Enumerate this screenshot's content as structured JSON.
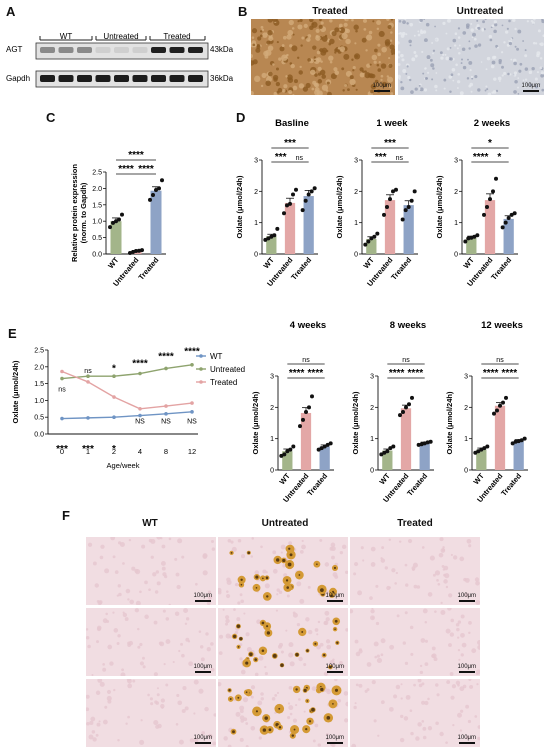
{
  "panels": {
    "A": "A",
    "B": "B",
    "C": "C",
    "D": "D",
    "E": "E",
    "F": "F"
  },
  "western": {
    "groups": [
      "WT",
      "Untreated",
      "Treated"
    ],
    "rows": [
      {
        "protein": "AGT",
        "size": "43kDa"
      },
      {
        "protein": "Gapdh",
        "size": "36kDa"
      }
    ]
  },
  "ihc": {
    "titles": [
      "Treated",
      "Untreated"
    ],
    "scale": "100μm",
    "colors": {
      "treated": "#a9793f",
      "untreated": "#cfd2da"
    }
  },
  "colors": {
    "wt": "#a3b58a",
    "untreated": "#e3a7a6",
    "treated": "#8ea3c6",
    "wt_line": "#6f94c4",
    "untreated_line": "#8ea36e",
    "treated_line": "#e3a3a3"
  },
  "chart_data": [
    {
      "id": "C",
      "type": "bar",
      "title": "",
      "ylabel": "Relative protein expression\n(norm. to Gapdh)",
      "ylabel_lines": [
        "Relative protein expression",
        "(norm. to Gapdh)"
      ],
      "categories": [
        "WT",
        "Untreated",
        "Treated"
      ],
      "values": [
        1.0,
        0.08,
        1.93
      ],
      "errors": [
        0.1,
        0.03,
        0.12
      ],
      "points": [
        [
          0.82,
          0.95,
          1.0,
          1.05,
          1.2
        ],
        [
          0.03,
          0.06,
          0.09,
          0.1,
          0.12
        ],
        [
          1.65,
          1.8,
          1.95,
          2.0,
          2.25
        ]
      ],
      "ylim": [
        0,
        2.5
      ],
      "yticks": [
        "0.0",
        "0.5",
        "1.0",
        "1.5",
        "2.0",
        "2.5"
      ],
      "significance": [
        {
          "from": 0,
          "to": 2,
          "label": "****"
        },
        {
          "from": 0,
          "to": 1,
          "label": "****"
        },
        {
          "from": 1,
          "to": 2,
          "label": "****"
        }
      ]
    },
    {
      "id": "D1",
      "type": "bar",
      "title": "Basline",
      "ylabel": "Oxlate (μmol/24h)",
      "categories": [
        "WT",
        "Untreated",
        "Treated"
      ],
      "values": [
        0.57,
        1.63,
        1.85
      ],
      "errors": [
        0.06,
        0.15,
        0.18
      ],
      "points": [
        [
          0.45,
          0.5,
          0.55,
          0.6,
          0.8
        ],
        [
          1.3,
          1.55,
          1.6,
          1.9,
          2.05
        ],
        [
          1.4,
          1.7,
          1.9,
          2.0,
          2.1
        ]
      ],
      "ylim": [
        0,
        3
      ],
      "yticks": [
        "0",
        "1",
        "2",
        "3"
      ],
      "significance": [
        {
          "from": 0,
          "to": 2,
          "label": "***"
        },
        {
          "from": 0,
          "to": 1,
          "label": "***"
        },
        {
          "from": 1,
          "to": 2,
          "label": "ns"
        }
      ]
    },
    {
      "id": "D2",
      "type": "bar",
      "title": "1 week",
      "ylabel": "Oxlate (μmol/24h)",
      "categories": [
        "WT",
        "Untreated",
        "Treated"
      ],
      "values": [
        0.48,
        1.72,
        1.56
      ],
      "errors": [
        0.07,
        0.17,
        0.14
      ],
      "points": [
        [
          0.3,
          0.4,
          0.5,
          0.55,
          0.65
        ],
        [
          1.25,
          1.5,
          1.75,
          2.0,
          2.05
        ],
        [
          1.1,
          1.4,
          1.5,
          1.7,
          2.0
        ]
      ],
      "ylim": [
        0,
        3
      ],
      "yticks": [
        "0",
        "1",
        "2",
        "3"
      ],
      "significance": [
        {
          "from": 0,
          "to": 2,
          "label": "***"
        },
        {
          "from": 0,
          "to": 1,
          "label": "***"
        },
        {
          "from": 1,
          "to": 2,
          "label": "ns"
        }
      ]
    },
    {
      "id": "D3",
      "type": "bar",
      "title": "2 weeks",
      "ylabel": "Oxlate (μmol/24h)",
      "categories": [
        "WT",
        "Untreated",
        "Treated"
      ],
      "values": [
        0.52,
        1.72,
        1.12
      ],
      "errors": [
        0.05,
        0.2,
        0.1
      ],
      "points": [
        [
          0.4,
          0.5,
          0.52,
          0.55,
          0.6
        ],
        [
          1.25,
          1.5,
          1.75,
          2.0,
          2.4
        ],
        [
          0.85,
          1.0,
          1.15,
          1.25,
          1.3
        ]
      ],
      "ylim": [
        0,
        3
      ],
      "yticks": [
        "0",
        "1",
        "2",
        "3"
      ],
      "significance": [
        {
          "from": 0,
          "to": 2,
          "label": "*"
        },
        {
          "from": 0,
          "to": 1,
          "label": "****"
        },
        {
          "from": 1,
          "to": 2,
          "label": "*"
        }
      ]
    },
    {
      "id": "E",
      "type": "line",
      "xlabel": "Age/week",
      "ylabel": "Oxlate (μmol/24h)",
      "x": [
        "0",
        "1",
        "2",
        "4",
        "8",
        "12"
      ],
      "series": [
        {
          "name": "WT",
          "values": [
            0.46,
            0.48,
            0.5,
            0.55,
            0.6,
            0.66
          ]
        },
        {
          "name": "Untreated",
          "values": [
            1.65,
            1.72,
            1.72,
            1.8,
            1.95,
            2.06
          ]
        },
        {
          "name": "Treated",
          "values": [
            1.86,
            1.55,
            1.1,
            0.75,
            0.83,
            0.92
          ]
        }
      ],
      "ylim": [
        0,
        2.5
      ],
      "yticks": [
        "0.0",
        "0.5",
        "1.0",
        "1.5",
        "2.0",
        "2.5"
      ],
      "legend": "right",
      "annotations": [
        {
          "x": 0,
          "y": 1.35,
          "label": "ns",
          "bold": false
        },
        {
          "x": 0,
          "y": -0.45,
          "label": "***",
          "bold": true
        },
        {
          "x": 1,
          "y": 1.9,
          "label": "ns",
          "bold": false
        },
        {
          "x": 1,
          "y": -0.45,
          "label": "***",
          "bold": true
        },
        {
          "x": 2,
          "y": 1.95,
          "label": "*",
          "bold": true
        },
        {
          "x": 2,
          "y": -0.45,
          "label": "*",
          "bold": true
        },
        {
          "x": 3,
          "y": 2.1,
          "label": "****",
          "bold": true
        },
        {
          "x": 3,
          "y": 0.4,
          "label": "NS",
          "bold": false
        },
        {
          "x": 4,
          "y": 2.3,
          "label": "****",
          "bold": true
        },
        {
          "x": 4,
          "y": 0.4,
          "label": "NS",
          "bold": false
        },
        {
          "x": 5,
          "y": 2.45,
          "label": "****",
          "bold": true
        },
        {
          "x": 5,
          "y": 0.4,
          "label": "NS",
          "bold": false
        }
      ]
    },
    {
      "id": "E1",
      "type": "bar",
      "title": "4 weeks",
      "ylabel": "Oxlate (μmol/24h)",
      "categories": [
        "WT",
        "Untreated",
        "Treated"
      ],
      "values": [
        0.6,
        1.82,
        0.75
      ],
      "errors": [
        0.07,
        0.17,
        0.05
      ],
      "points": [
        [
          0.45,
          0.5,
          0.6,
          0.65,
          0.75
        ],
        [
          1.4,
          1.6,
          1.85,
          2.0,
          2.35
        ],
        [
          0.65,
          0.7,
          0.75,
          0.8,
          0.85
        ]
      ],
      "ylim": [
        0,
        3
      ],
      "yticks": [
        "0",
        "1",
        "2",
        "3"
      ],
      "significance": [
        {
          "from": 0,
          "to": 2,
          "label": "ns"
        },
        {
          "from": 0,
          "to": 1,
          "label": "****"
        },
        {
          "from": 1,
          "to": 2,
          "label": "****"
        }
      ]
    },
    {
      "id": "E2",
      "type": "bar",
      "title": "8 weeks",
      "ylabel": "Oxlate (μmol/24h)",
      "categories": [
        "WT",
        "Untreated",
        "Treated"
      ],
      "values": [
        0.62,
        1.97,
        0.85
      ],
      "errors": [
        0.05,
        0.1,
        0.04
      ],
      "points": [
        [
          0.5,
          0.55,
          0.6,
          0.7,
          0.75
        ],
        [
          1.75,
          1.85,
          2.0,
          2.1,
          2.3
        ],
        [
          0.8,
          0.82,
          0.85,
          0.88,
          0.9
        ]
      ],
      "ylim": [
        0,
        3
      ],
      "yticks": [
        "0",
        "1",
        "2",
        "3"
      ],
      "significance": [
        {
          "from": 0,
          "to": 2,
          "label": "ns"
        },
        {
          "from": 0,
          "to": 1,
          "label": "****"
        },
        {
          "from": 1,
          "to": 2,
          "label": "****"
        }
      ]
    },
    {
      "id": "E3",
      "type": "bar",
      "title": "12 weeks",
      "ylabel": "Oxlate (μmol/24h)",
      "categories": [
        "WT",
        "Untreated",
        "Treated"
      ],
      "values": [
        0.65,
        2.05,
        0.92
      ],
      "errors": [
        0.05,
        0.1,
        0.05
      ],
      "points": [
        [
          0.55,
          0.6,
          0.65,
          0.7,
          0.75
        ],
        [
          1.8,
          1.9,
          2.05,
          2.15,
          2.3
        ],
        [
          0.85,
          0.9,
          0.92,
          0.95,
          1.0
        ]
      ],
      "ylim": [
        0,
        3
      ],
      "yticks": [
        "0",
        "1",
        "2",
        "3"
      ],
      "significance": [
        {
          "from": 0,
          "to": 2,
          "label": "ns"
        },
        {
          "from": 0,
          "to": 1,
          "label": "****"
        },
        {
          "from": 1,
          "to": 2,
          "label": "****"
        }
      ]
    }
  ],
  "stain": {
    "headers": [
      "WT",
      "Untreated",
      "Treated"
    ],
    "scale": "100μm",
    "colors": {
      "pink": "#f1dde2",
      "crystal": "#d49a35",
      "dark": "#5a3b12"
    }
  }
}
